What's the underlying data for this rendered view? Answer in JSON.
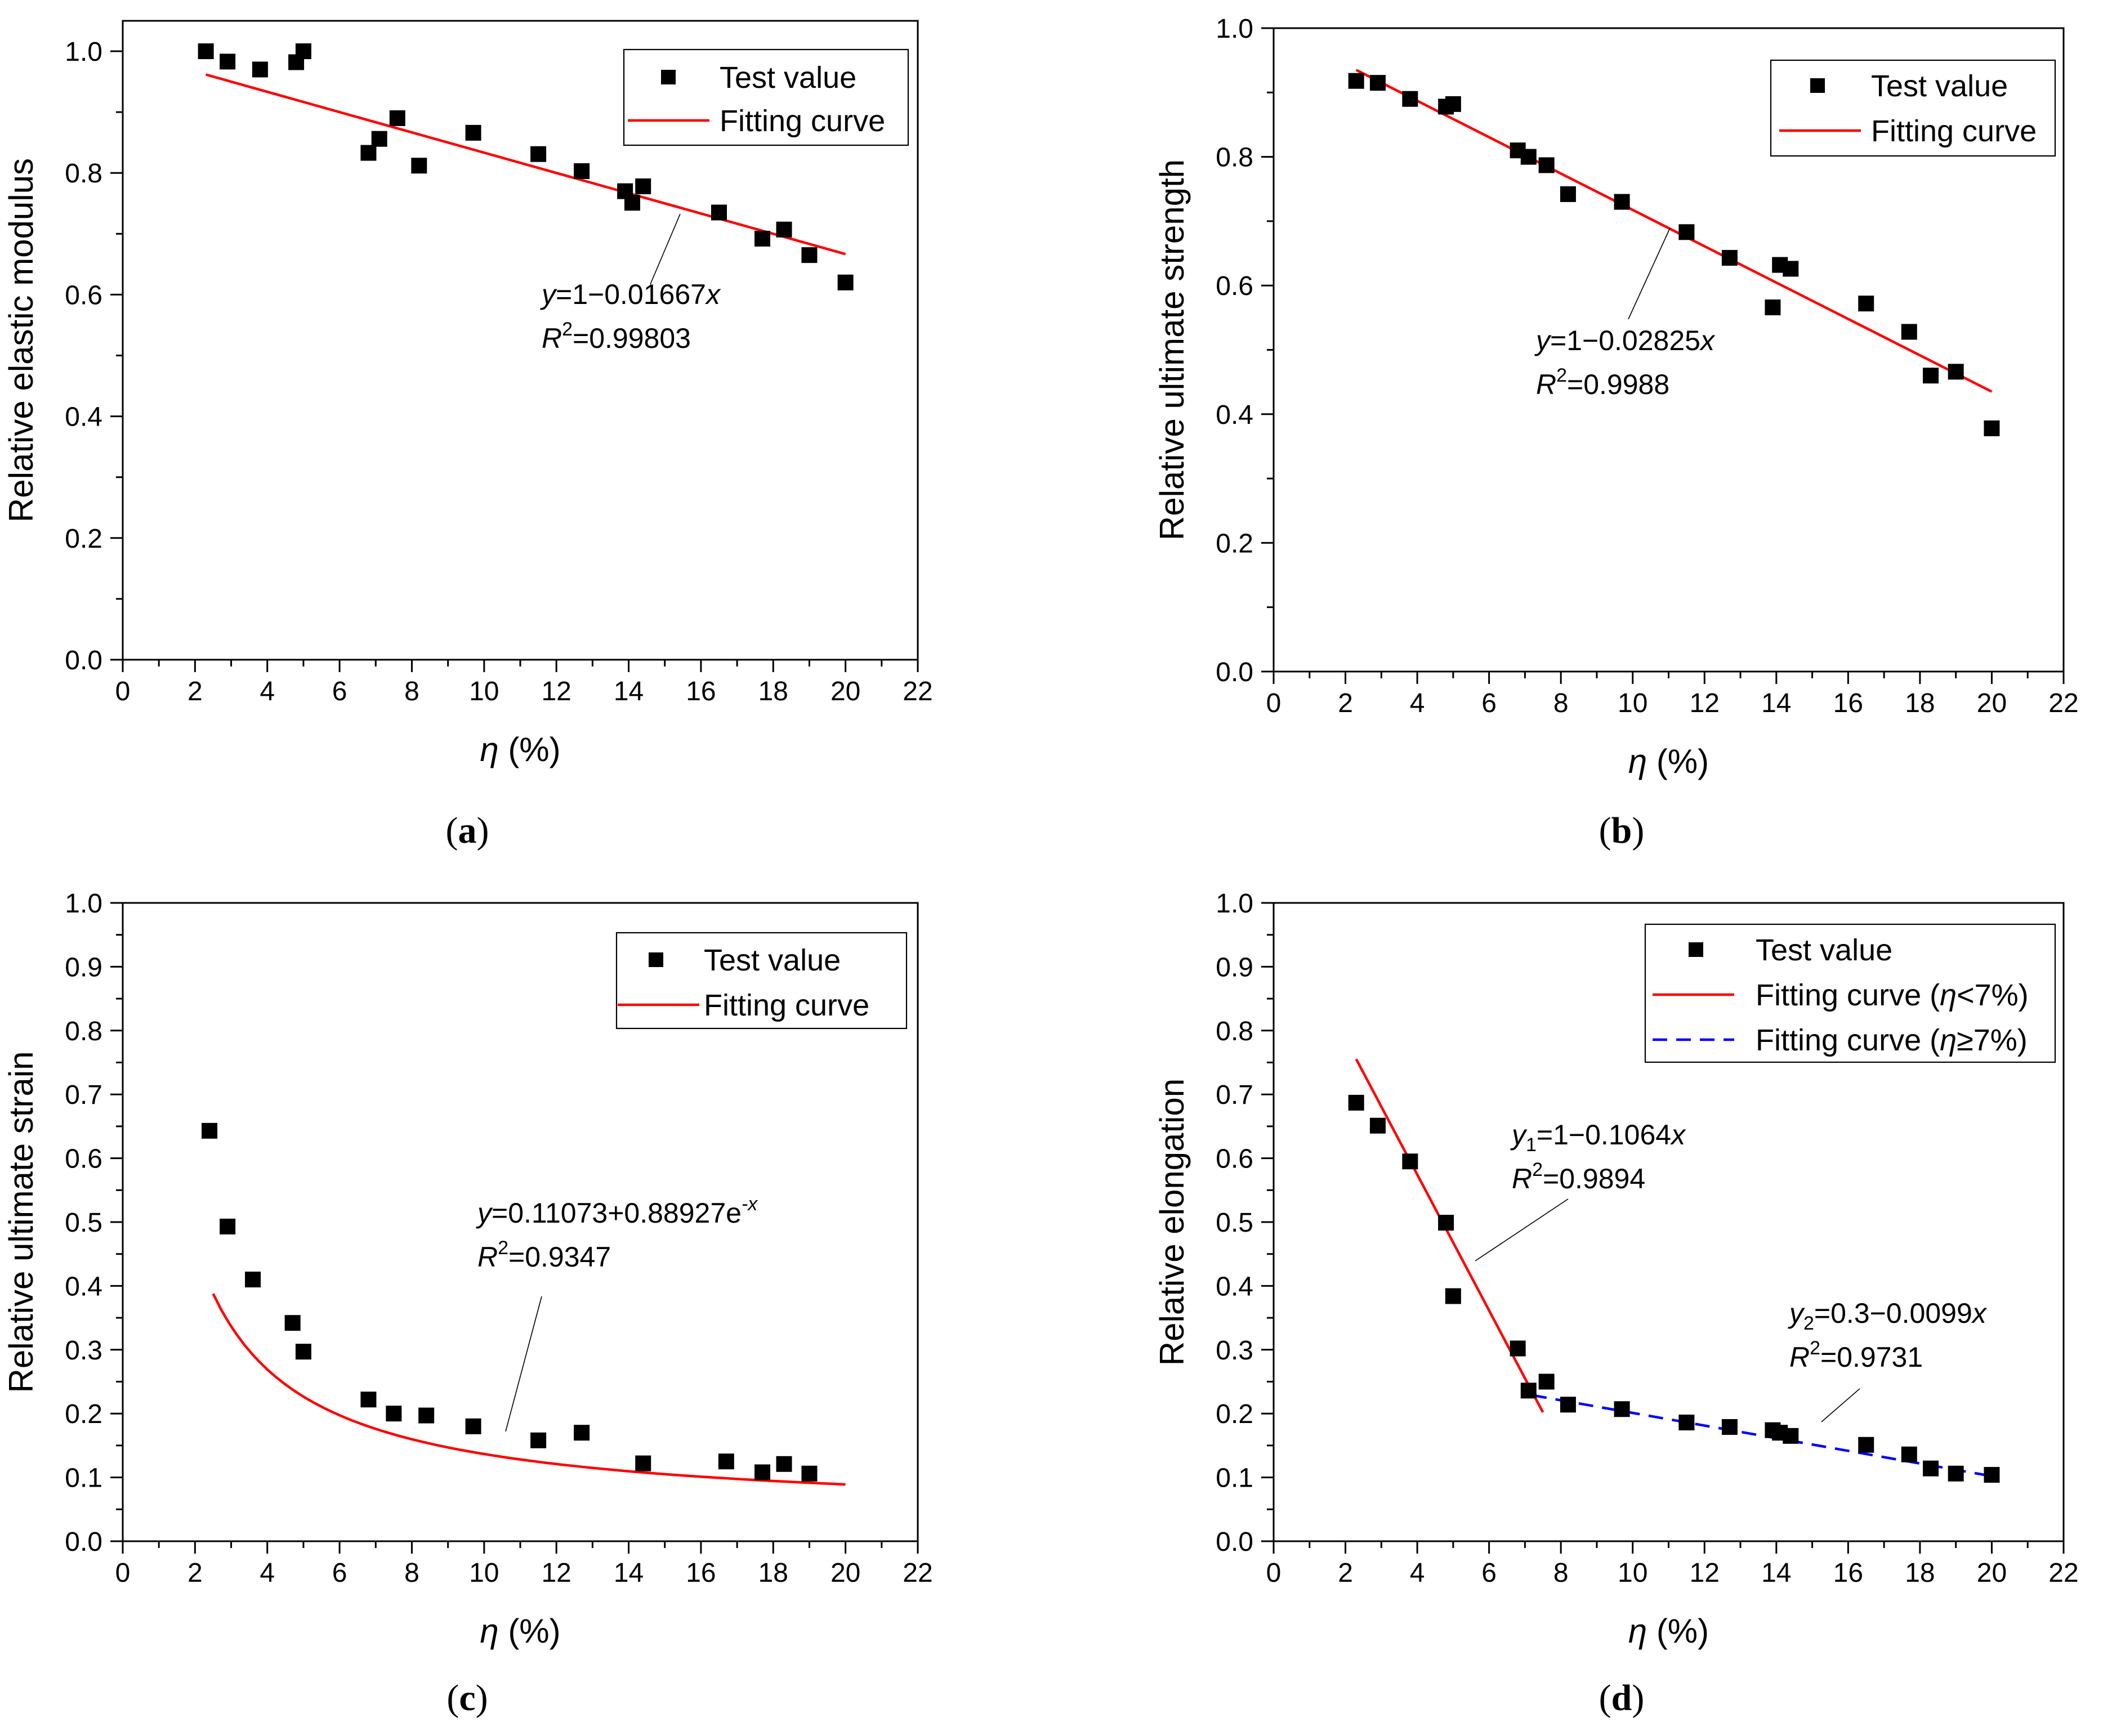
{
  "chart_data": [
    {
      "id": "a",
      "type": "scatter",
      "caption": "a",
      "xlabel": "η (%)",
      "ylabel": "Relative elastic modulus",
      "xlim": [
        0,
        22
      ],
      "ylim": [
        0,
        1.05
      ],
      "xticks": [
        0,
        2,
        4,
        6,
        8,
        10,
        12,
        14,
        16,
        18,
        20,
        22
      ],
      "yticks": [
        0.0,
        0.2,
        0.4,
        0.6,
        0.8,
        1.0
      ],
      "ytick_decimals": 1,
      "legend": [
        {
          "label": "Test value",
          "kind": "marker",
          "color": "#000000"
        },
        {
          "label": "Fitting curve",
          "kind": "line",
          "color": "#ff0000",
          "dash": false
        }
      ],
      "test_values": {
        "x": [
          2.3,
          2.9,
          3.8,
          4.8,
          5.0,
          6.8,
          7.1,
          7.6,
          8.2,
          9.7,
          11.5,
          12.7,
          13.9,
          14.1,
          14.4,
          16.5,
          17.7,
          18.3,
          19.0,
          20.0
        ],
        "y": [
          1.0,
          0.983,
          0.97,
          0.982,
          1.0,
          0.833,
          0.856,
          0.89,
          0.812,
          0.866,
          0.831,
          0.803,
          0.77,
          0.751,
          0.778,
          0.735,
          0.692,
          0.707,
          0.665,
          0.62
        ]
      },
      "fits": [
        {
          "label": "Fitting curve",
          "type": "linear",
          "a": 1.0,
          "b": 0.01667,
          "x_range": [
            2.3,
            20.0
          ],
          "color": "#ff0000",
          "dash": false
        }
      ],
      "annotations": [
        {
          "eq": "y=1−0.01667x",
          "r2": "R²=0.99803",
          "eq_parts": [
            "y",
            "=1−0.01667",
            "x"
          ],
          "r2_parts": [
            "R",
            "2",
            "=0.99803"
          ]
        }
      ]
    },
    {
      "id": "b",
      "type": "scatter",
      "caption": "b",
      "xlabel": "η (%)",
      "ylabel": "Relative ultimate strength",
      "xlim": [
        0,
        22
      ],
      "ylim": [
        0,
        1.0
      ],
      "xticks": [
        0,
        2,
        4,
        6,
        8,
        10,
        12,
        14,
        16,
        18,
        20,
        22
      ],
      "yticks": [
        0.0,
        0.2,
        0.4,
        0.6,
        0.8,
        1.0
      ],
      "ytick_decimals": 1,
      "legend": [
        {
          "label": "Test value",
          "kind": "marker",
          "color": "#000000"
        },
        {
          "label": "Fitting curve",
          "kind": "line",
          "color": "#ff0000",
          "dash": false
        }
      ],
      "test_values": {
        "x": [
          2.3,
          2.9,
          3.8,
          4.8,
          5.0,
          6.8,
          7.1,
          7.6,
          8.2,
          9.7,
          11.5,
          12.7,
          13.9,
          14.1,
          14.4,
          16.5,
          17.7,
          18.3,
          19.0,
          20.0
        ],
        "y": [
          0.918,
          0.915,
          0.89,
          0.878,
          0.882,
          0.81,
          0.8,
          0.787,
          0.742,
          0.73,
          0.683,
          0.643,
          0.566,
          0.632,
          0.626,
          0.572,
          0.528,
          0.46,
          0.466,
          0.378
        ]
      },
      "fits": [
        {
          "label": "Fitting curve",
          "type": "linear",
          "a": 1.0,
          "b": 0.02825,
          "x_range": [
            2.3,
            20.0
          ],
          "color": "#ff0000",
          "dash": false
        }
      ],
      "annotations": [
        {
          "eq": "y=1−0.02825x",
          "r2": "R²=0.9988",
          "eq_parts": [
            "y",
            "=1−0.02825",
            "x"
          ],
          "r2_parts": [
            "R",
            "2",
            "=0.9988"
          ]
        }
      ]
    },
    {
      "id": "c",
      "type": "scatter",
      "caption": "c",
      "xlabel": "η (%)",
      "ylabel": "Relative ultimate strain",
      "xlim": [
        0,
        22
      ],
      "ylim": [
        0,
        1.0
      ],
      "xticks": [
        0,
        2,
        4,
        6,
        8,
        10,
        12,
        14,
        16,
        18,
        20,
        22
      ],
      "yticks": [
        0.0,
        0.1,
        0.2,
        0.3,
        0.4,
        0.5,
        0.6,
        0.7,
        0.8,
        0.9,
        1.0
      ],
      "ytick_decimals": 1,
      "legend": [
        {
          "label": "Test value",
          "kind": "marker",
          "color": "#000000"
        },
        {
          "label": "Fitting curve",
          "kind": "line",
          "color": "#ff0000",
          "dash": false
        }
      ],
      "test_values": {
        "x": [
          2.4,
          2.9,
          3.6,
          4.7,
          5.0,
          6.8,
          7.5,
          8.4,
          9.7,
          11.5,
          12.7,
          14.4,
          16.7,
          17.7,
          18.3,
          19.0
        ],
        "y": [
          0.643,
          0.493,
          0.41,
          0.342,
          0.297,
          0.222,
          0.2,
          0.197,
          0.18,
          0.158,
          0.17,
          0.122,
          0.125,
          0.108,
          0.121,
          0.106
        ]
      },
      "fits": [
        {
          "label": "Fitting curve",
          "type": "curve",
          "x_range": [
            2.5,
            20.0
          ],
          "color": "#ff0000",
          "dash": false
        }
      ],
      "annotations": [
        {
          "eq": "y=0.11073+0.88927e-x",
          "r2": "R²=0.9347",
          "eq_parts": [
            "y",
            "=0.11073+0.88927e",
            "-x"
          ],
          "r2_parts": [
            "R",
            "2",
            "=0.9347"
          ]
        }
      ]
    },
    {
      "id": "d",
      "type": "scatter",
      "caption": "d",
      "xlabel": "η (%)",
      "ylabel": "Relative elongation",
      "xlim": [
        0,
        22
      ],
      "ylim": [
        0,
        1.0
      ],
      "xticks": [
        0,
        2,
        4,
        6,
        8,
        10,
        12,
        14,
        16,
        18,
        20,
        22
      ],
      "yticks": [
        0.0,
        0.1,
        0.2,
        0.3,
        0.4,
        0.5,
        0.6,
        0.7,
        0.8,
        0.9,
        1.0
      ],
      "ytick_decimals": 1,
      "legend": [
        {
          "label": "Test value",
          "kind": "marker",
          "color": "#000000"
        },
        {
          "label": "Fitting curve (η<7%)",
          "kind": "line",
          "color": "#ff0000",
          "dash": false
        },
        {
          "label": "Fitting curve (η≥7%)",
          "kind": "line",
          "color": "#0000ff",
          "dash": true
        }
      ],
      "test_values": {
        "x": [
          2.3,
          2.9,
          3.8,
          4.8,
          5.0,
          6.8,
          7.1,
          7.6,
          8.2,
          9.7,
          11.5,
          12.7,
          13.9,
          14.1,
          14.4,
          16.5,
          17.7,
          18.3,
          19.0,
          20.0
        ],
        "y": [
          0.687,
          0.651,
          0.595,
          0.499,
          0.384,
          0.302,
          0.236,
          0.25,
          0.214,
          0.207,
          0.186,
          0.179,
          0.174,
          0.17,
          0.165,
          0.151,
          0.136,
          0.114,
          0.106,
          0.104
        ]
      },
      "fits": [
        {
          "label": "Fitting curve (η<7%)",
          "type": "linear",
          "a": 1.0,
          "b": 0.1064,
          "x_range": [
            2.3,
            7.5
          ],
          "color": "#ff0000",
          "dash": false
        },
        {
          "label": "Fitting curve (η≥7%)",
          "type": "linear",
          "a": 0.3,
          "b": 0.0099,
          "x_range": [
            7.2,
            20.0
          ],
          "color": "#0000ff",
          "dash": true
        }
      ],
      "annotations": [
        {
          "eq": "y1=1−0.1064x",
          "r2": "R²=0.9894",
          "eq_parts": [
            "y",
            "1",
            "=1−0.1064",
            "x"
          ],
          "r2_parts": [
            "R",
            "2",
            "=0.9894"
          ]
        },
        {
          "eq": "y2=0.3−0.0099x",
          "r2": "R²=0.9731",
          "eq_parts": [
            "y",
            "2",
            "=0.3−0.0099",
            "x"
          ],
          "r2_parts": [
            "R",
            "2",
            "=0.9731"
          ]
        }
      ]
    }
  ]
}
